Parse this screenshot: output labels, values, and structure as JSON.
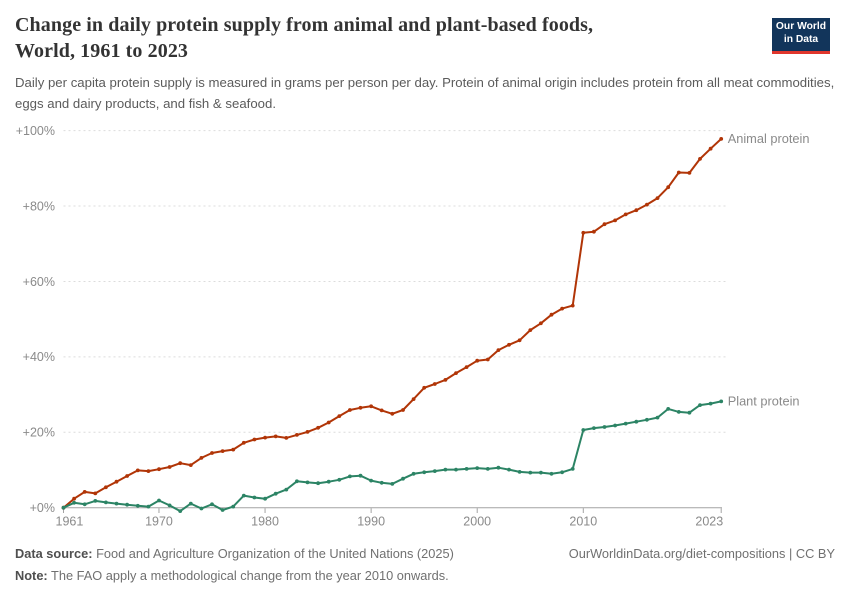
{
  "header": {
    "title_line1": "Change in daily protein supply from animal and plant-based foods,",
    "title_line2": "World, 1961 to 2023",
    "subtitle": "Daily per capita protein supply is measured in grams per person per day. Protein of animal origin includes protein from all meat commodities, eggs and dairy products, and fish & seafood."
  },
  "logo": {
    "line1": "Our World",
    "line2": "in Data",
    "bg_color": "#12355b",
    "accent_color": "#e0362c"
  },
  "chart_data": {
    "type": "line",
    "title": "Change in daily protein supply from animal and plant-based foods, World, 1961 to 2023",
    "xlabel": "",
    "ylabel": "",
    "xlim": [
      1961,
      2023
    ],
    "ylim": [
      0,
      100
    ],
    "grid": "horizontal-dashed",
    "legend_position": "line-end-labels",
    "x_ticks": [
      {
        "v": 1961,
        "label": "1961"
      },
      {
        "v": 1970,
        "label": "1970"
      },
      {
        "v": 1980,
        "label": "1980"
      },
      {
        "v": 1990,
        "label": "1990"
      },
      {
        "v": 2000,
        "label": "2000"
      },
      {
        "v": 2010,
        "label": "2010"
      },
      {
        "v": 2023,
        "label": "2023"
      }
    ],
    "y_ticks": [
      {
        "v": 0,
        "label": "+0%"
      },
      {
        "v": 20,
        "label": "+20%"
      },
      {
        "v": 40,
        "label": "+40%"
      },
      {
        "v": 60,
        "label": "+60%"
      },
      {
        "v": 80,
        "label": "+80%"
      },
      {
        "v": 100,
        "label": "+100%"
      }
    ],
    "years": [
      1961,
      1962,
      1963,
      1964,
      1965,
      1966,
      1967,
      1968,
      1969,
      1970,
      1971,
      1972,
      1973,
      1974,
      1975,
      1976,
      1977,
      1978,
      1979,
      1980,
      1981,
      1982,
      1983,
      1984,
      1985,
      1986,
      1987,
      1988,
      1989,
      1990,
      1991,
      1992,
      1993,
      1994,
      1995,
      1996,
      1997,
      1998,
      1999,
      2000,
      2001,
      2002,
      2003,
      2004,
      2005,
      2006,
      2007,
      2008,
      2009,
      2010,
      2011,
      2012,
      2013,
      2014,
      2015,
      2016,
      2017,
      2018,
      2019,
      2020,
      2021,
      2022,
      2023
    ],
    "series": [
      {
        "name": "Animal protein",
        "color": "#b13507",
        "values": [
          0,
          2.4,
          4.2,
          3.8,
          5.4,
          6.9,
          8.4,
          9.9,
          9.7,
          10.2,
          10.8,
          11.8,
          11.3,
          13.2,
          14.5,
          15.0,
          15.4,
          17.2,
          18.1,
          18.6,
          18.9,
          18.5,
          19.3,
          20.1,
          21.2,
          22.6,
          24.3,
          25.9,
          26.5,
          26.9,
          25.8,
          24.9,
          25.9,
          28.8,
          31.8,
          32.8,
          33.9,
          35.7,
          37.3,
          39.0,
          39.3,
          41.8,
          43.2,
          44.4,
          47.1,
          48.9,
          51.2,
          52.8,
          53.6,
          72.9,
          73.2,
          75.2,
          76.2,
          77.8,
          78.9,
          80.4,
          82.1,
          85.0,
          88.9,
          88.8,
          92.5,
          95.2,
          97.8
        ]
      },
      {
        "name": "Plant protein",
        "color": "#2c8465",
        "values": [
          0,
          1.3,
          0.9,
          1.8,
          1.4,
          1.1,
          0.8,
          0.5,
          0.3,
          1.9,
          0.6,
          -0.9,
          1.1,
          -0.2,
          0.9,
          -0.6,
          0.3,
          3.2,
          2.7,
          2.4,
          3.7,
          4.8,
          7.0,
          6.7,
          6.5,
          6.9,
          7.4,
          8.3,
          8.5,
          7.2,
          6.6,
          6.3,
          7.7,
          9.0,
          9.4,
          9.7,
          10.1,
          10.1,
          10.3,
          10.5,
          10.3,
          10.6,
          10.1,
          9.5,
          9.3,
          9.3,
          9.0,
          9.4,
          10.3,
          20.6,
          21.1,
          21.4,
          21.8,
          22.3,
          22.8,
          23.3,
          23.9,
          26.2,
          25.4,
          25.2,
          27.2,
          27.6,
          28.2
        ]
      }
    ],
    "annotations": []
  },
  "footer": {
    "source_label": "Data source:",
    "source_text": " Food and Agriculture Organization of the United Nations (2025)",
    "note_label": "Note:",
    "note_text": " The FAO apply a methodological change from the year 2010 onwards.",
    "link": "OurWorldinData.org/diet-compositions | CC BY"
  }
}
